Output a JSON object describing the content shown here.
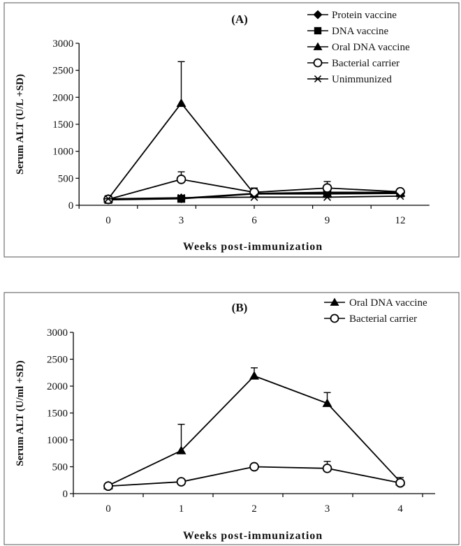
{
  "chart_data": [
    {
      "type": "line",
      "title": "(A)",
      "xlabel": "Weeks post-immunization",
      "ylabel": "Serum ALT (U/L +SD)",
      "x": [
        0,
        3,
        6,
        9,
        12
      ],
      "xlim": [
        0,
        12
      ],
      "ylim": [
        0,
        3000
      ],
      "yticks": [
        0,
        500,
        1000,
        1500,
        2000,
        2500,
        3000
      ],
      "legend_position": "top-right",
      "grid": false,
      "series": [
        {
          "name": "Protein vaccine",
          "marker": "diamond",
          "values": [
            110,
            130,
            220,
            240,
            240
          ],
          "error": [
            0,
            0,
            0,
            0,
            0
          ]
        },
        {
          "name": "DNA vaccine",
          "marker": "square",
          "values": [
            100,
            120,
            210,
            210,
            220
          ],
          "error": [
            0,
            0,
            0,
            0,
            0
          ]
        },
        {
          "name": "Oral DNA vaccine",
          "marker": "triangle",
          "values": [
            120,
            1890,
            210,
            220,
            230
          ],
          "error": [
            0,
            770,
            0,
            0,
            0
          ]
        },
        {
          "name": "Bacterial carrier",
          "marker": "circle-open",
          "values": [
            110,
            480,
            240,
            320,
            250
          ],
          "error": [
            0,
            140,
            80,
            120,
            0
          ]
        },
        {
          "name": "Unimmunized",
          "marker": "asterisk",
          "values": [
            120,
            140,
            150,
            150,
            170
          ],
          "error": [
            0,
            0,
            0,
            0,
            0
          ]
        }
      ]
    },
    {
      "type": "line",
      "title": "(B)",
      "xlabel": "Weeks post-immunization",
      "ylabel": "Serum ALT (U/ml +SD)",
      "x": [
        0,
        1,
        2,
        3,
        4
      ],
      "xlim": [
        0,
        4
      ],
      "ylim": [
        0,
        3000
      ],
      "yticks": [
        0,
        500,
        1000,
        1500,
        2000,
        2500,
        3000
      ],
      "legend_position": "top-right",
      "grid": false,
      "series": [
        {
          "name": "Oral DNA vaccine",
          "marker": "triangle",
          "values": [
            150,
            800,
            2190,
            1680,
            220
          ],
          "error": [
            0,
            490,
            150,
            200,
            80
          ]
        },
        {
          "name": "Bacterial carrier",
          "marker": "circle-open",
          "values": [
            140,
            220,
            500,
            470,
            200
          ],
          "error": [
            0,
            0,
            0,
            130,
            0
          ]
        }
      ]
    }
  ]
}
